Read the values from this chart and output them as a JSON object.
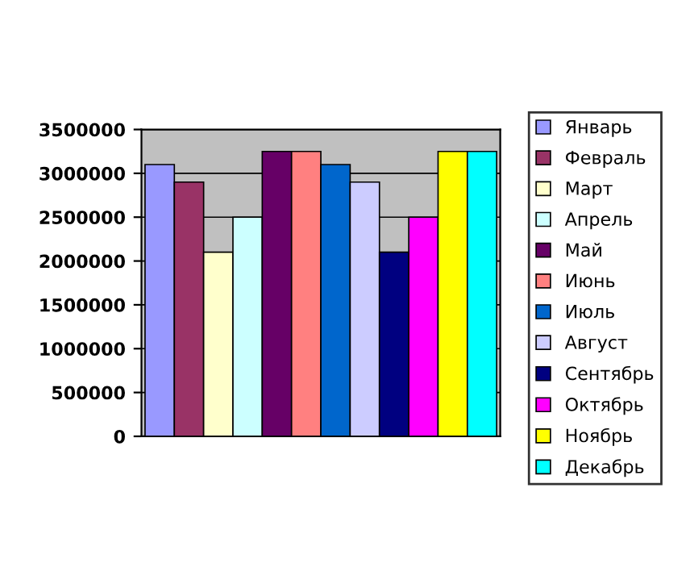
{
  "chart_data": {
    "type": "bar",
    "categories": [
      null
    ],
    "series": [
      {
        "name": "Январь",
        "color": "#9999ff",
        "values": [
          3100000
        ]
      },
      {
        "name": "Февраль",
        "color": "#993366",
        "values": [
          2900000
        ]
      },
      {
        "name": "Март",
        "color": "#ffffcc",
        "values": [
          2100000
        ]
      },
      {
        "name": "Апрель",
        "color": "#ccffff",
        "values": [
          2500000
        ]
      },
      {
        "name": "Май",
        "color": "#660066",
        "values": [
          3250000
        ]
      },
      {
        "name": "Июнь",
        "color": "#ff8080",
        "values": [
          3250000
        ]
      },
      {
        "name": "Июль",
        "color": "#0066cc",
        "values": [
          3100000
        ]
      },
      {
        "name": "Август",
        "color": "#ccccff",
        "values": [
          2900000
        ]
      },
      {
        "name": "Сентябрь",
        "color": "#000080",
        "values": [
          2100000
        ]
      },
      {
        "name": "Октябрь",
        "color": "#ff00ff",
        "values": [
          2500000
        ]
      },
      {
        "name": "Ноябрь",
        "color": "#ffff00",
        "values": [
          3250000
        ]
      },
      {
        "name": "Декабрь",
        "color": "#00ffff",
        "values": [
          3250000
        ]
      }
    ],
    "ylim": [
      0,
      3500000
    ],
    "yticks": [
      0,
      500000,
      1000000,
      1500000,
      2000000,
      2500000,
      3000000,
      3500000
    ],
    "grid": "y",
    "legend": "right"
  }
}
